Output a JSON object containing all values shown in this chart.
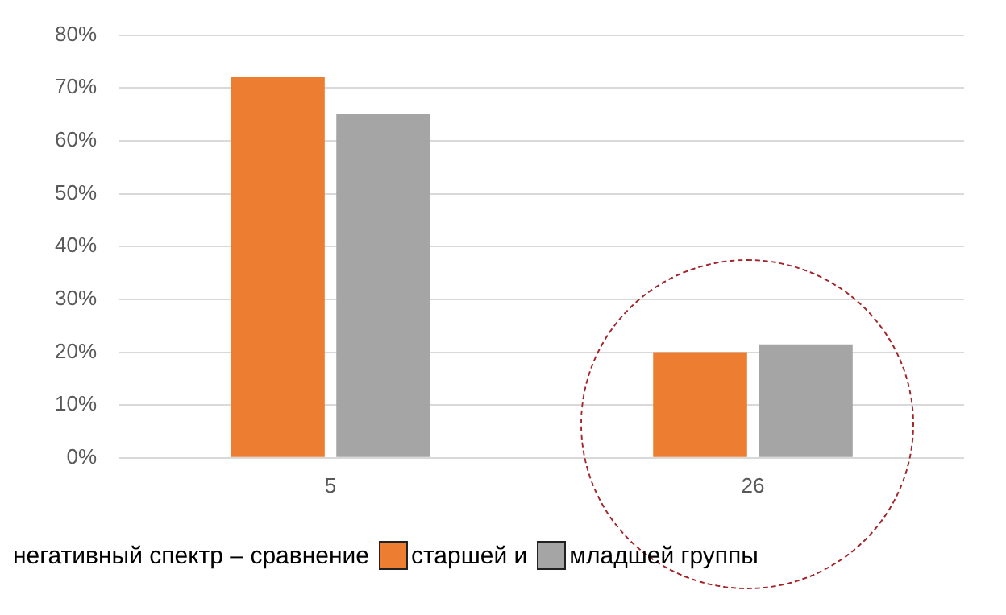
{
  "chart_data": {
    "type": "bar",
    "categories": [
      "5",
      "26"
    ],
    "series": [
      {
        "name": "старшей и",
        "color": "#ed7d31",
        "values": [
          72,
          20
        ]
      },
      {
        "name": "младшей группы",
        "color": "#a5a5a5",
        "values": [
          65,
          21.5
        ]
      }
    ],
    "ylim": [
      0,
      80
    ],
    "yticks": [
      {
        "value": 0,
        "label": "0%"
      },
      {
        "value": 10,
        "label": "10%"
      },
      {
        "value": 20,
        "label": "20%"
      },
      {
        "value": 30,
        "label": "30%"
      },
      {
        "value": 40,
        "label": "40%"
      },
      {
        "value": 50,
        "label": "50%"
      },
      {
        "value": 60,
        "label": "60%"
      },
      {
        "value": 70,
        "label": "70%"
      },
      {
        "value": 80,
        "label": "80%"
      }
    ],
    "grid": "y",
    "legend": "bottom",
    "legend_title": "негативный спектр – сравнение"
  }
}
